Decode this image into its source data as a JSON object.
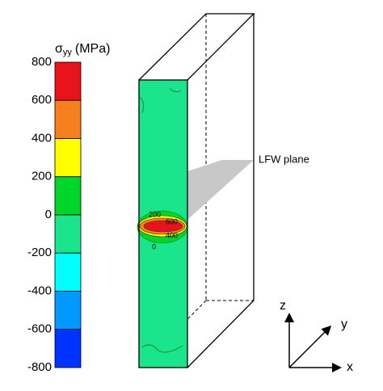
{
  "colorbar": {
    "symbol": "σ",
    "subscript": "yy",
    "unit": "(MPa)",
    "ticks": [
      800,
      600,
      400,
      200,
      0,
      -200,
      -400,
      -600,
      -800
    ],
    "colors": [
      "#e8141c",
      "#f7801e",
      "#ffff00",
      "#00d629",
      "#1be58c",
      "#00ffff",
      "#0099ff",
      "#0033ff"
    ]
  },
  "contour_labels": [
    "200",
    "600",
    "400",
    "0"
  ],
  "plane_label": "LFW plane",
  "axes": {
    "z": "z",
    "y": "y",
    "x": "x"
  }
}
